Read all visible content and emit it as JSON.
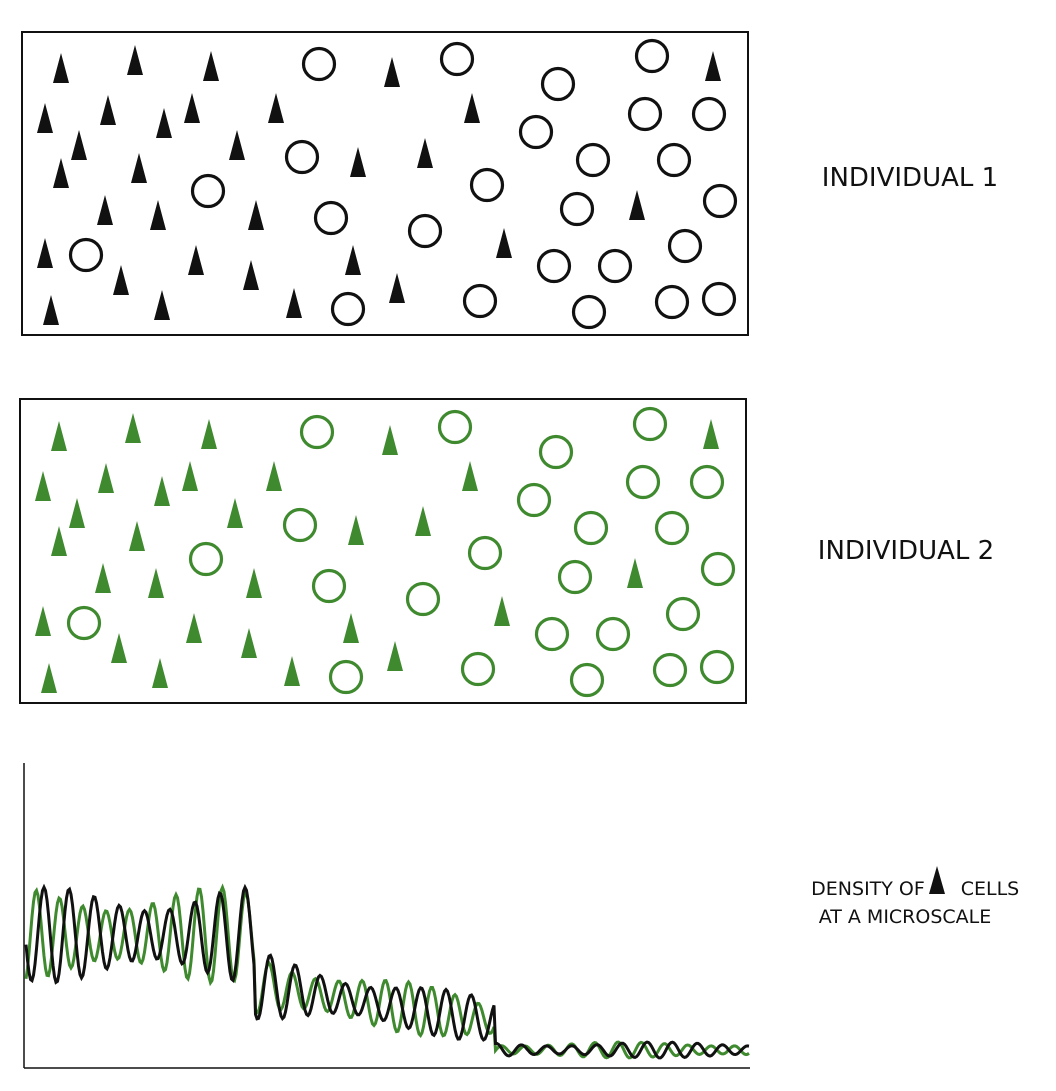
{
  "panels": [
    {
      "label": "INDIVIDUAL 1"
    },
    {
      "label": "INDIVIDUAL 2"
    }
  ],
  "density_label": {
    "line1_start": "DENSITY OF",
    "line1_end": "CELLS",
    "line2": "AT A MICROSCALE"
  }
}
